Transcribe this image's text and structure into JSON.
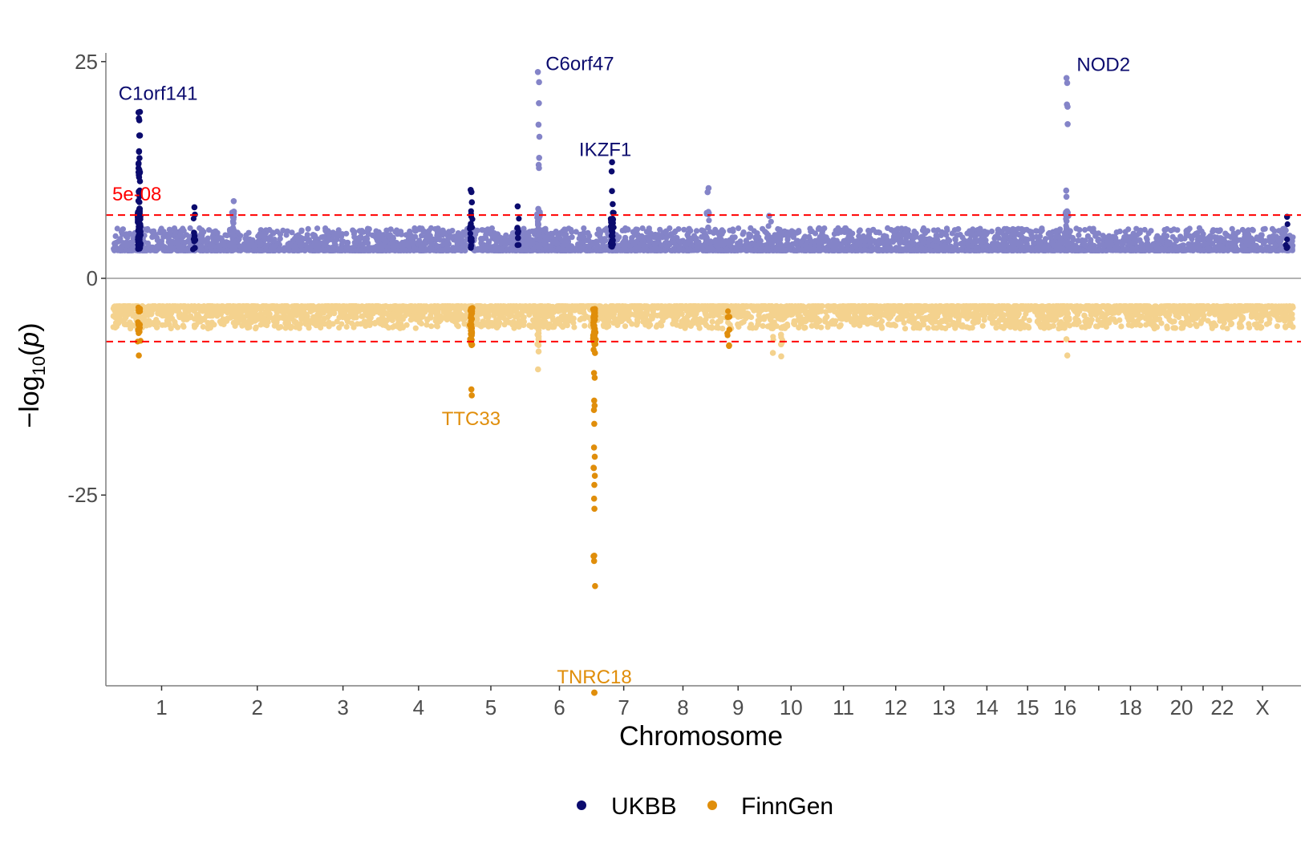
{
  "chart_data": {
    "type": "scatter",
    "subtype": "miami-plot",
    "title": "",
    "xlabel": "Chromosome",
    "ylabel": "-log10(p)",
    "ylim": [
      -47,
      26
    ],
    "yticks": [
      25,
      0,
      -25
    ],
    "ytick_labels": [
      "25",
      "0",
      "-25"
    ],
    "x_tick_labels": [
      "1",
      "2",
      "3",
      "4",
      "5",
      "6",
      "7",
      "8",
      "9",
      "10",
      "11",
      "12",
      "13",
      "14",
      "15",
      "16",
      "18",
      "20",
      "22",
      "X"
    ],
    "chromosomes": [
      {
        "name": "1",
        "label": "1",
        "start": 0,
        "end": 249
      },
      {
        "name": "2",
        "label": "2",
        "start": 249,
        "end": 491
      },
      {
        "name": "3",
        "label": "3",
        "start": 491,
        "end": 689
      },
      {
        "name": "4",
        "label": "4",
        "start": 689,
        "end": 879
      },
      {
        "name": "5",
        "label": "5",
        "start": 879,
        "end": 1060
      },
      {
        "name": "6",
        "label": "6",
        "start": 1060,
        "end": 1231
      },
      {
        "name": "7",
        "label": "7",
        "start": 1231,
        "end": 1390
      },
      {
        "name": "8",
        "label": "8",
        "start": 1390,
        "end": 1535
      },
      {
        "name": "9",
        "label": "9",
        "start": 1535,
        "end": 1673
      },
      {
        "name": "10",
        "label": "10",
        "start": 1673,
        "end": 1807
      },
      {
        "name": "11",
        "label": "11",
        "start": 1807,
        "end": 1942
      },
      {
        "name": "12",
        "label": "12",
        "start": 1942,
        "end": 2075
      },
      {
        "name": "13",
        "label": "13",
        "start": 2075,
        "end": 2189
      },
      {
        "name": "14",
        "label": "14",
        "start": 2189,
        "end": 2296
      },
      {
        "name": "15",
        "label": "15",
        "start": 2296,
        "end": 2398
      },
      {
        "name": "16",
        "label": "16",
        "start": 2398,
        "end": 2488
      },
      {
        "name": "17",
        "label": "",
        "start": 2488,
        "end": 2571
      },
      {
        "name": "18",
        "label": "18",
        "start": 2571,
        "end": 2651
      },
      {
        "name": "19",
        "label": "",
        "start": 2651,
        "end": 2710
      },
      {
        "name": "20",
        "label": "20",
        "start": 2710,
        "end": 2774
      },
      {
        "name": "21",
        "label": "",
        "start": 2774,
        "end": 2821
      },
      {
        "name": "22",
        "label": "22",
        "start": 2821,
        "end": 2872
      },
      {
        "name": "X",
        "label": "X",
        "start": 2872,
        "end": 3028
      }
    ],
    "significance_threshold": {
      "label": "5e-08",
      "value": 7.3
    },
    "series": [
      {
        "name": "UKBB",
        "color_dark": "#0b0b6e",
        "color_light": "#8484c8",
        "direction": "up"
      },
      {
        "name": "FinnGen",
        "color_dark": "#e08e0b",
        "color_light": "#f4d28e",
        "direction": "down"
      }
    ],
    "peaks": [
      {
        "series": "UKBB",
        "chrom": "1",
        "pos": 67,
        "top": 19.2,
        "count": 60,
        "fill": 0.6
      },
      {
        "series": "UKBB",
        "chrom": "1",
        "pos": 209,
        "top": 8.2,
        "count": 6,
        "fill": 0.2
      },
      {
        "series": "UKBB",
        "chrom": "2",
        "pos": 61,
        "top": 7.7,
        "count": 3,
        "fill": 0.2
      },
      {
        "series": "UKBB",
        "chrom": "2",
        "pos": 60,
        "top": 8.9,
        "count": 10,
        "fill": 0.3
      },
      {
        "series": "UKBB",
        "chrom": "5",
        "pos": 40,
        "top": 10.2,
        "count": 10,
        "fill": 0.4
      },
      {
        "series": "UKBB",
        "chrom": "5",
        "pos": 160,
        "top": 8.3,
        "count": 4,
        "fill": 0.3
      },
      {
        "series": "UKBB",
        "chrom": "6",
        "pos": 32,
        "top": 23.8,
        "count": 22,
        "fill": 0.4
      },
      {
        "series": "UKBB",
        "chrom": "7",
        "pos": 50,
        "top": 13.4,
        "count": 18,
        "fill": 0.5
      },
      {
        "series": "UKBB",
        "chrom": "8",
        "pos": 137,
        "top": 10.4,
        "count": 8,
        "fill": 0.3
      },
      {
        "series": "UKBB",
        "chrom": "10",
        "pos": 12,
        "top": 7.2,
        "count": 3,
        "fill": 0.2
      },
      {
        "series": "UKBB",
        "chrom": "16",
        "pos": 50,
        "top": 23.1,
        "count": 14,
        "fill": 0.3
      },
      {
        "series": "UKBB",
        "chrom": "X",
        "pos": 140,
        "top": 7.1,
        "count": 3,
        "fill": 0.2
      },
      {
        "series": "FinnGen",
        "chrom": "1",
        "pos": 67,
        "top": 8.9,
        "count": 10,
        "fill": 0.3
      },
      {
        "series": "FinnGen",
        "chrom": "5",
        "pos": 40,
        "top": 13.5,
        "count": 18,
        "fill": 0.4
      },
      {
        "series": "FinnGen",
        "chrom": "6",
        "pos": 32,
        "top": 10.5,
        "count": 10,
        "fill": 0.4
      },
      {
        "series": "FinnGen",
        "chrom": "7",
        "pos": 4,
        "top": 35.5,
        "count": 40,
        "fill": 0.5
      },
      {
        "series": "FinnGen",
        "chrom": "9",
        "pos": 45,
        "top": 7.8,
        "count": 4,
        "fill": 0.3
      },
      {
        "series": "FinnGen",
        "chrom": "10",
        "pos": 20,
        "top": 8.6,
        "count": 4,
        "fill": 0.3
      },
      {
        "series": "FinnGen",
        "chrom": "10",
        "pos": 43,
        "top": 9.0,
        "count": 5,
        "fill": 0.3
      },
      {
        "series": "FinnGen",
        "chrom": "16",
        "pos": 50,
        "top": 8.9,
        "count": 4,
        "fill": 0.3
      }
    ],
    "outliers": [
      {
        "series": "FinnGen",
        "chrom": "7",
        "pos": 4,
        "value": 47.8
      }
    ],
    "annotations": [
      {
        "series": "UKBB",
        "text": "C1orf141",
        "chrom": "1",
        "pos": 14,
        "value": 20.6,
        "anchor": "start"
      },
      {
        "series": "UKBB",
        "text": "C6orf47",
        "chrom": "6",
        "pos": 50,
        "value": 24.0,
        "anchor": "start"
      },
      {
        "series": "UKBB",
        "text": "IKZF1",
        "chrom": "7",
        "pos": 32,
        "value": 14.1,
        "anchor": "middle"
      },
      {
        "series": "UKBB",
        "text": "NOD2",
        "chrom": "16",
        "pos": 75,
        "value": 23.9,
        "anchor": "start"
      },
      {
        "series": "FinnGen",
        "text": "TTC33",
        "chrom": "5",
        "pos": 40,
        "value": 16.2,
        "anchor": "middle"
      },
      {
        "series": "FinnGen",
        "text": "TNRC18",
        "chrom": "7",
        "pos": 4,
        "value": 46.0,
        "anchor": "middle"
      }
    ],
    "legend": {
      "placement": "bottom",
      "entries": [
        "UKBB",
        "FinnGen"
      ]
    },
    "grid": false
  }
}
